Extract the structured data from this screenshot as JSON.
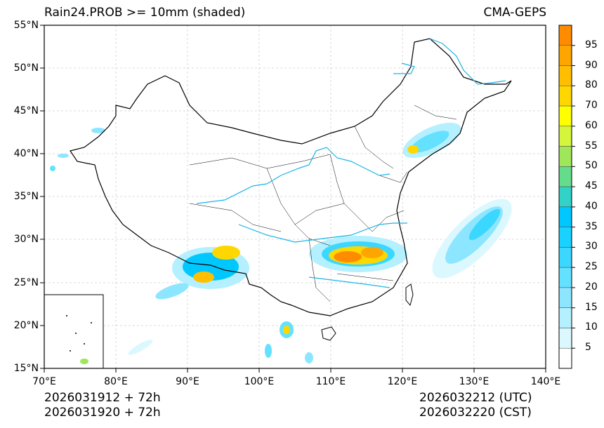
{
  "header": {
    "title": "Rain24.PROB >= 10mm (shaded)",
    "model": "CMA-GEPS"
  },
  "footer": {
    "init_utc": "2026031912 + 72h",
    "init_cst": "2026031920 + 72h",
    "valid_utc": "2026032212 (UTC)",
    "valid_cst": "2026032220 (CST)"
  },
  "axes": {
    "lon_ticks": [
      "70°E",
      "80°E",
      "90°E",
      "100°E",
      "110°E",
      "120°E",
      "130°E",
      "140°E"
    ],
    "lat_ticks": [
      "55°N",
      "50°N",
      "45°N",
      "40°N",
      "35°N",
      "30°N",
      "25°N",
      "20°N",
      "15°N"
    ]
  },
  "colorbar": {
    "levels": [
      "95",
      "90",
      "80",
      "70",
      "60",
      "55",
      "50",
      "45",
      "40",
      "35",
      "30",
      "25",
      "20",
      "15",
      "10",
      "5"
    ],
    "colors": [
      "#ff8c00",
      "#ffa500",
      "#ffbf00",
      "#ffd700",
      "#ffff00",
      "#d4f53c",
      "#a0e65a",
      "#64dc8c",
      "#32d2c8",
      "#00c8ff",
      "#19d2ff",
      "#3cd7ff",
      "#64e1ff",
      "#8ce6ff",
      "#b4f0ff",
      "#dcf8ff",
      "#ffffff"
    ]
  }
}
